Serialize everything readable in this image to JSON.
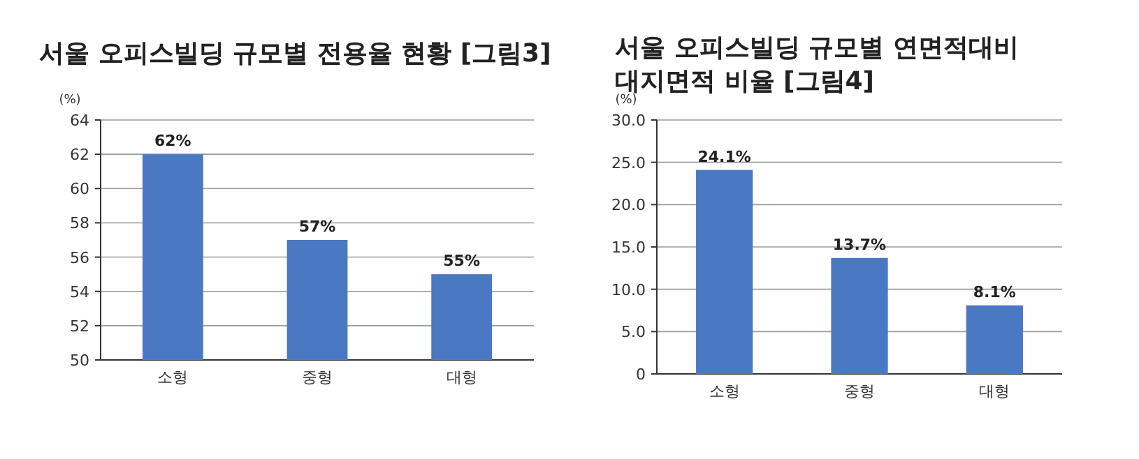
{
  "chart_data": [
    {
      "type": "bar",
      "title": "서울 오피스빌딩 규모별 전용율 현황 [그림3]",
      "ylabel": "(%)",
      "categories": [
        "소형",
        "중형",
        "대형"
      ],
      "values": [
        62,
        57,
        55
      ],
      "value_labels": [
        "62%",
        "57%",
        "55%"
      ],
      "color": "#4a78c2",
      "ylim": [
        50,
        64
      ],
      "yticks": [
        50,
        52,
        54,
        56,
        58,
        60,
        62,
        64
      ],
      "grid": "y"
    },
    {
      "type": "bar",
      "title": "서울 오피스빌딩 규모별 연면적대비\n대지면적 비율 [그림4]",
      "ylabel": "(%)",
      "categories": [
        "소형",
        "중형",
        "대형"
      ],
      "values": [
        24.1,
        13.7,
        8.1
      ],
      "value_labels": [
        "24.1%",
        "13.7%",
        "8.1%"
      ],
      "color": "#4a78c2",
      "ylim": [
        0,
        30
      ],
      "yticks": [
        0,
        {
          "value": 5,
          "label": "5.0"
        },
        {
          "value": 10,
          "label": "10.0"
        },
        {
          "value": 15,
          "label": "15.0"
        },
        {
          "value": 20,
          "label": "20.0"
        },
        {
          "value": 25,
          "label": "25.0"
        },
        {
          "value": 30,
          "label": "30.0"
        }
      ],
      "grid": "y"
    }
  ]
}
